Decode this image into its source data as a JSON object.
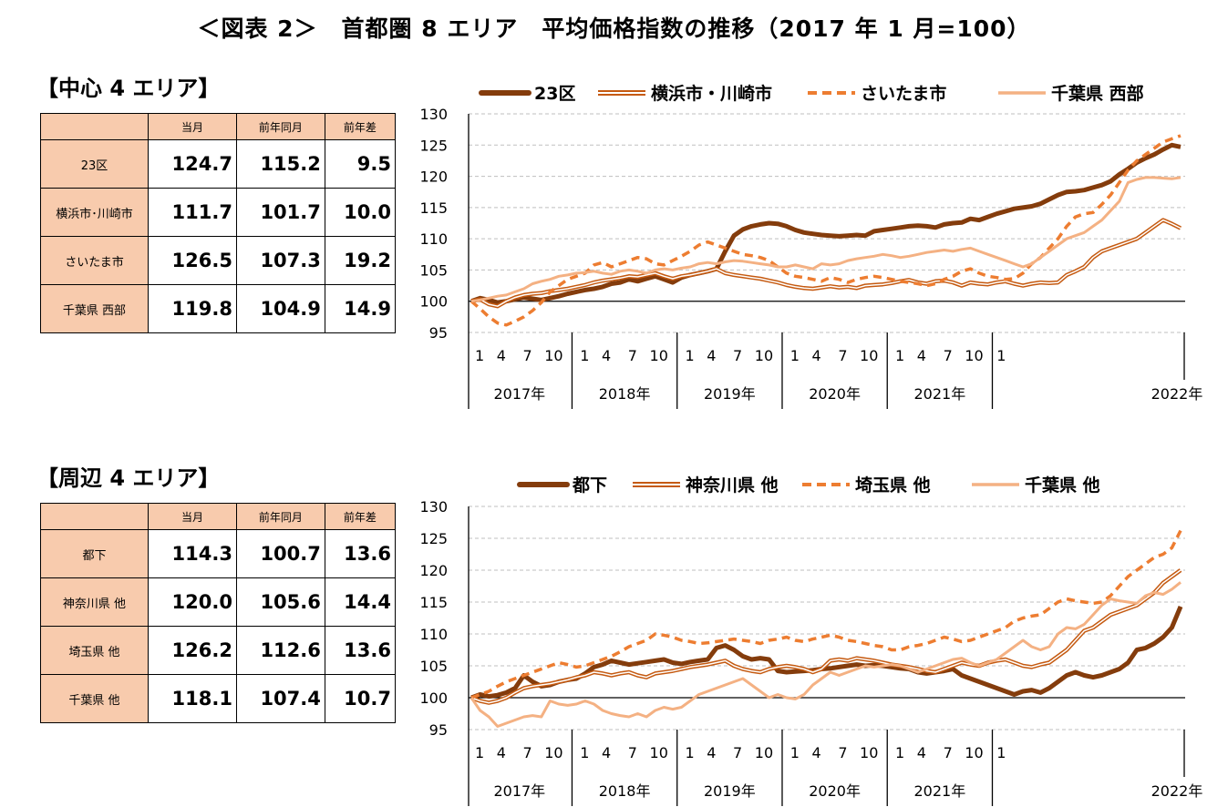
{
  "title": "＜図表 2＞　首都圏 8 エリア　平均価格指数の推移（2017 年 1 月=100）",
  "sections": [
    {
      "label": "【中心 4 エリア】",
      "table": {
        "headers": [
          "",
          "当月",
          "前年同月",
          "前年差"
        ],
        "rows": [
          {
            "name": "23区",
            "cur": "124.7",
            "prev": "115.2",
            "diff": "9.5"
          },
          {
            "name": "横浜市･川崎市",
            "cur": "111.7",
            "prev": "101.7",
            "diff": "10.0"
          },
          {
            "name": "さいたま市",
            "cur": "126.5",
            "prev": "107.3",
            "diff": "19.2"
          },
          {
            "name": "千葉県 西部",
            "cur": "119.8",
            "prev": "104.9",
            "diff": "14.9"
          }
        ]
      }
    },
    {
      "label": "【周辺 4 エリア】",
      "table": {
        "headers": [
          "",
          "当月",
          "前年同月",
          "前年差"
        ],
        "rows": [
          {
            "name": "都下",
            "cur": "114.3",
            "prev": "100.7",
            "diff": "13.6"
          },
          {
            "name": "神奈川県 他",
            "cur": "120.0",
            "prev": "105.6",
            "diff": "14.4"
          },
          {
            "name": "埼玉県 他",
            "cur": "126.2",
            "prev": "112.6",
            "diff": "13.6"
          },
          {
            "name": "千葉県 他",
            "cur": "118.1",
            "prev": "107.4",
            "diff": "10.7"
          }
        ]
      }
    }
  ],
  "chart_data": [
    {
      "type": "line",
      "x_tick_labels": [
        "1",
        "4",
        "7",
        "10",
        "1",
        "4",
        "7",
        "10",
        "1",
        "4",
        "7",
        "10",
        "1",
        "4",
        "7",
        "10",
        "1",
        "4",
        "7",
        "10",
        "1"
      ],
      "year_labels": [
        "2017年",
        "2018年",
        "2019年",
        "2020年",
        "2021年",
        "2022年"
      ],
      "ylim": [
        95,
        130
      ],
      "yticks": [
        95,
        100,
        105,
        110,
        115,
        120,
        125,
        130
      ],
      "grid": true,
      "legend": "top",
      "series": [
        {
          "name": "23区",
          "color": "#843c0c",
          "style": "thick",
          "values": [
            100,
            100.5,
            100.2,
            99.8,
            100,
            100.3,
            100.6,
            100.4,
            100.2,
            100.5,
            100.8,
            101.2,
            101.5,
            101.8,
            102.0,
            102.3,
            102.8,
            103.0,
            103.5,
            103.2,
            103.6,
            104.0,
            103.5,
            103.0,
            103.8,
            104.2,
            104.5,
            104.8,
            105.2,
            108.0,
            110.5,
            111.5,
            112.0,
            112.3,
            112.5,
            112.4,
            112.0,
            111.4,
            111.0,
            110.8,
            110.6,
            110.5,
            110.4,
            110.5,
            110.6,
            110.5,
            111.2,
            111.4,
            111.6,
            111.8,
            112.0,
            112.1,
            112.0,
            111.8,
            112.3,
            112.5,
            112.6,
            113.2,
            113.0,
            113.5,
            114.0,
            114.4,
            114.8,
            115.0,
            115.2,
            115.6,
            116.3,
            117.0,
            117.5,
            117.6,
            117.8,
            118.2,
            118.6,
            119.2,
            120.3,
            121.2,
            122.2,
            122.9,
            123.5,
            124.3,
            125.0,
            124.7
          ]
        },
        {
          "name": "横浜市・川崎市",
          "color": "#c55a11",
          "style": "double",
          "values": [
            100,
            100.3,
            99.5,
            99.2,
            100,
            100.6,
            101.0,
            101.2,
            101.3,
            101.6,
            101.8,
            102.0,
            102.3,
            102.6,
            103.0,
            103.3,
            103.5,
            103.7,
            104.0,
            103.9,
            104.2,
            104.5,
            104.0,
            103.6,
            104.0,
            104.2,
            104.5,
            104.8,
            105.2,
            104.5,
            104.2,
            104.0,
            103.8,
            103.6,
            103.3,
            103.0,
            102.6,
            102.3,
            102.1,
            102.0,
            102.2,
            102.4,
            102.2,
            102.3,
            102.1,
            102.5,
            102.6,
            102.7,
            102.9,
            103.2,
            103.4,
            103.0,
            102.8,
            103.2,
            103.3,
            103.0,
            102.5,
            103.0,
            102.8,
            102.7,
            103.0,
            103.2,
            102.8,
            102.5,
            102.8,
            103.0,
            102.9,
            103.0,
            104.2,
            104.8,
            105.5,
            107.0,
            108.0,
            108.5,
            109.0,
            109.5,
            110.0,
            111.0,
            112.0,
            113.0,
            112.4,
            111.7
          ]
        },
        {
          "name": "さいたま市",
          "color": "#ed7d31",
          "style": "dashed",
          "values": [
            100,
            98.8,
            97.5,
            96.5,
            96.2,
            96.8,
            97.5,
            98.5,
            99.8,
            101.5,
            102.5,
            103.5,
            104.0,
            104.5,
            105.8,
            106.2,
            105.5,
            106.0,
            106.5,
            107.0,
            106.8,
            106.0,
            105.8,
            106.5,
            107.2,
            108.0,
            109.0,
            109.5,
            109.0,
            108.5,
            108.0,
            107.5,
            107.3,
            107.0,
            106.5,
            105.5,
            104.5,
            104.0,
            103.8,
            103.5,
            103.2,
            103.8,
            103.5,
            103.0,
            103.5,
            103.8,
            104.0,
            103.8,
            103.5,
            103.2,
            103.0,
            102.8,
            102.5,
            102.8,
            103.5,
            104.0,
            104.8,
            105.2,
            104.5,
            104.0,
            103.8,
            103.5,
            103.6,
            104.5,
            106.0,
            107.0,
            108.5,
            110.0,
            112.0,
            113.5,
            114.0,
            114.2,
            115.5,
            117.0,
            119.0,
            121.0,
            122.5,
            123.5,
            124.5,
            125.5,
            126.0,
            126.5
          ]
        },
        {
          "name": "千葉県 西部",
          "color": "#f4b183",
          "style": "thin",
          "values": [
            100,
            100.2,
            100.5,
            100.8,
            101.0,
            101.5,
            102.0,
            102.8,
            103.2,
            103.5,
            104.0,
            104.2,
            104.5,
            104.6,
            104.8,
            104.5,
            104.3,
            104.8,
            105.0,
            104.8,
            104.5,
            105.0,
            105.2,
            105.0,
            105.3,
            105.5,
            106.0,
            106.2,
            106.0,
            106.3,
            106.5,
            106.4,
            106.2,
            106.0,
            105.8,
            105.5,
            105.5,
            105.8,
            105.5,
            105.2,
            106.0,
            105.8,
            106.0,
            106.5,
            106.8,
            107.0,
            107.2,
            107.5,
            107.3,
            107.0,
            107.2,
            107.5,
            107.8,
            108.0,
            108.2,
            108.0,
            108.3,
            108.5,
            108.0,
            107.5,
            107.0,
            106.5,
            106.0,
            105.5,
            106.0,
            107.0,
            108.0,
            109.0,
            110.0,
            110.5,
            111.0,
            112.0,
            113.0,
            114.5,
            116.0,
            119.0,
            119.5,
            119.8,
            119.8,
            119.7,
            119.6,
            119.8
          ]
        }
      ]
    },
    {
      "type": "line",
      "x_tick_labels": [
        "1",
        "4",
        "7",
        "10",
        "1",
        "4",
        "7",
        "10",
        "1",
        "4",
        "7",
        "10",
        "1",
        "4",
        "7",
        "10",
        "1",
        "4",
        "7",
        "10",
        "1"
      ],
      "year_labels": [
        "2017年",
        "2018年",
        "2019年",
        "2020年",
        "2021年",
        "2022年"
      ],
      "ylim": [
        95,
        130
      ],
      "yticks": [
        95,
        100,
        105,
        110,
        115,
        120,
        125,
        130
      ],
      "grid": true,
      "legend": "top",
      "series": [
        {
          "name": "都下",
          "color": "#843c0c",
          "style": "thick",
          "values": [
            100,
            100.5,
            100.2,
            100.4,
            100.8,
            101.5,
            103.5,
            102.5,
            101.8,
            102.0,
            102.5,
            102.8,
            103.0,
            103.8,
            104.8,
            105.2,
            105.8,
            105.5,
            105.2,
            105.4,
            105.6,
            105.8,
            106.0,
            105.5,
            105.3,
            105.6,
            105.8,
            106.0,
            107.8,
            108.2,
            107.5,
            106.5,
            106.0,
            106.2,
            106.0,
            104.2,
            104.0,
            104.1,
            104.2,
            104.3,
            104.5,
            104.6,
            104.8,
            105.0,
            105.2,
            105.0,
            105.1,
            105.0,
            104.8,
            104.6,
            104.5,
            104.0,
            103.8,
            104.0,
            104.2,
            104.5,
            103.5,
            103.0,
            102.5,
            102.0,
            101.5,
            101.0,
            100.5,
            101.0,
            101.2,
            100.8,
            101.5,
            102.5,
            103.5,
            104.0,
            103.5,
            103.2,
            103.5,
            104.0,
            104.5,
            105.5,
            107.5,
            107.8,
            108.5,
            109.5,
            111.0,
            114.3
          ]
        },
        {
          "name": "神奈川県 他",
          "color": "#c55a11",
          "style": "double",
          "values": [
            100,
            99.5,
            99.2,
            99.5,
            100.0,
            100.8,
            101.5,
            101.8,
            102.0,
            102.2,
            102.5,
            102.8,
            103.2,
            103.5,
            104.0,
            103.8,
            103.5,
            103.8,
            104.0,
            103.5,
            103.2,
            103.8,
            104.0,
            104.2,
            104.5,
            104.8,
            105.0,
            105.2,
            105.5,
            105.8,
            105.0,
            104.5,
            104.2,
            104.0,
            104.5,
            104.8,
            105.0,
            104.8,
            104.5,
            104.0,
            104.5,
            105.8,
            106.0,
            105.8,
            106.2,
            106.0,
            105.8,
            105.5,
            105.2,
            105.0,
            104.8,
            104.5,
            104.2,
            104.0,
            104.5,
            105.0,
            105.5,
            105.2,
            105.0,
            105.5,
            105.8,
            106.0,
            105.5,
            105.0,
            104.8,
            105.2,
            105.5,
            106.5,
            107.5,
            109.0,
            110.5,
            111.0,
            112.0,
            113.0,
            113.5,
            114.0,
            114.5,
            115.5,
            116.5,
            118.0,
            119.0,
            120.0
          ]
        },
        {
          "name": "埼玉県 他",
          "color": "#ed7d31",
          "style": "dashed",
          "values": [
            100,
            100.5,
            101.0,
            101.8,
            102.5,
            103.0,
            103.5,
            104.0,
            104.5,
            105.0,
            105.5,
            105.2,
            104.8,
            105.0,
            105.5,
            106.0,
            106.5,
            107.2,
            108.0,
            108.5,
            109.0,
            110.0,
            109.8,
            109.5,
            109.0,
            108.8,
            108.5,
            108.6,
            108.8,
            109.0,
            109.2,
            109.0,
            108.8,
            108.5,
            109.0,
            109.2,
            109.5,
            109.0,
            108.8,
            109.2,
            109.5,
            109.8,
            109.5,
            109.0,
            108.8,
            108.5,
            108.2,
            108.0,
            107.5,
            107.5,
            108.0,
            108.2,
            108.5,
            109.0,
            109.5,
            109.2,
            108.8,
            109.0,
            109.5,
            110.0,
            110.5,
            111.0,
            112.0,
            112.5,
            112.8,
            113.0,
            114.0,
            115.0,
            115.5,
            115.2,
            115.0,
            114.8,
            115.0,
            116.0,
            117.5,
            119.0,
            120.0,
            121.0,
            122.0,
            122.5,
            123.5,
            126.2
          ]
        },
        {
          "name": "千葉県 他",
          "color": "#f4b183",
          "style": "thin",
          "values": [
            100,
            98.0,
            97.0,
            95.5,
            96.0,
            96.5,
            97.0,
            97.2,
            97.0,
            99.5,
            99.0,
            98.8,
            99.0,
            99.5,
            99.0,
            98.0,
            97.5,
            97.2,
            97.0,
            97.5,
            97.0,
            98.0,
            98.5,
            98.2,
            98.5,
            99.5,
            100.5,
            101.0,
            101.5,
            102.0,
            102.5,
            103.0,
            102.0,
            101.0,
            100.0,
            100.5,
            100.0,
            99.8,
            100.5,
            102.0,
            103.0,
            104.0,
            103.5,
            104.0,
            104.5,
            105.0,
            104.8,
            105.0,
            105.2,
            105.0,
            104.5,
            104.0,
            104.5,
            105.0,
            105.5,
            106.0,
            106.2,
            105.5,
            105.0,
            105.5,
            106.0,
            107.0,
            108.0,
            109.0,
            108.0,
            107.5,
            108.0,
            110.0,
            111.0,
            110.8,
            111.5,
            113.0,
            114.5,
            115.5,
            115.2,
            115.0,
            114.8,
            116.0,
            116.5,
            116.2,
            117.0,
            118.1
          ]
        }
      ]
    }
  ]
}
